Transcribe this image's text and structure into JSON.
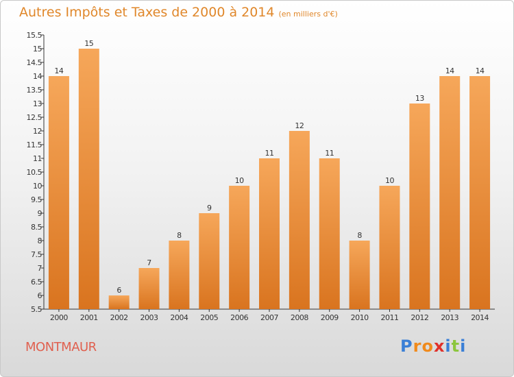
{
  "header": {
    "title": "Autres Impôts et Taxes de 2000 à 2014",
    "unit": "(en milliers d'€)"
  },
  "footer": {
    "commune": "MONTMAUR",
    "logo": [
      "P",
      "r",
      "o",
      "x",
      "i",
      "t",
      "i"
    ]
  },
  "colors": {
    "bar_top": "#f6a75a",
    "bar_bottom": "#d9741f",
    "title": "#e0872a",
    "commune": "#e0604f",
    "logo": [
      "#3a7fd6",
      "#f08a1c",
      "#f08a1c",
      "#e0302a",
      "#3a7fd6",
      "#8cc63e",
      "#3a7fd6"
    ]
  },
  "chart_data": {
    "type": "bar",
    "title": "Autres Impôts et Taxes de 2000 à 2014",
    "subtitle": "(en milliers d'€)",
    "categories": [
      "2000",
      "2001",
      "2002",
      "2003",
      "2004",
      "2005",
      "2006",
      "2007",
      "2008",
      "2009",
      "2010",
      "2011",
      "2012",
      "2013",
      "2014"
    ],
    "values": [
      14,
      15,
      6,
      7,
      8,
      9,
      10,
      11,
      12,
      11,
      8,
      10,
      13,
      14,
      14
    ],
    "ylim": [
      5.5,
      15.5
    ],
    "yticks": [
      "5.5",
      "6",
      "6.5",
      "7",
      "7.5",
      "8",
      "8.5",
      "9",
      "9.5",
      "10",
      "10.5",
      "11",
      "11.5",
      "12",
      "12.5",
      "13",
      "13.5",
      "14",
      "14.5",
      "15",
      "15.5"
    ],
    "grid": false,
    "legend": "none"
  }
}
